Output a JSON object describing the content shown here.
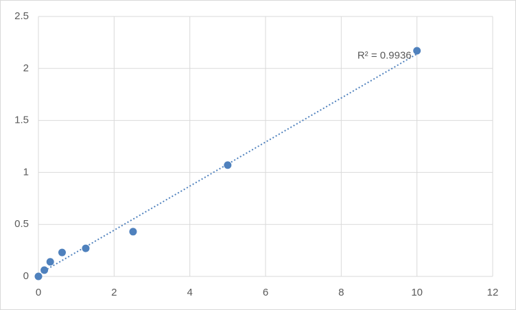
{
  "chart_data": {
    "type": "scatter",
    "x": [
      0,
      0.156,
      0.312,
      0.625,
      1.25,
      2.5,
      5,
      10
    ],
    "series": [
      {
        "color": "#4f81bd",
        "values": [
          0,
          0.06,
          0.14,
          0.23,
          0.27,
          0.43,
          1.07,
          2.17
        ]
      }
    ],
    "trendline": {
      "type": "linear",
      "label": "R² = 0.9936",
      "color": "#4f81bd"
    },
    "xlim": [
      0,
      12
    ],
    "xticks": [
      0,
      2,
      4,
      6,
      8,
      10,
      12
    ],
    "ylim": [
      0,
      2.5
    ],
    "yticks": [
      0,
      0.5,
      1,
      1.5,
      2,
      2.5
    ],
    "grid": true
  }
}
